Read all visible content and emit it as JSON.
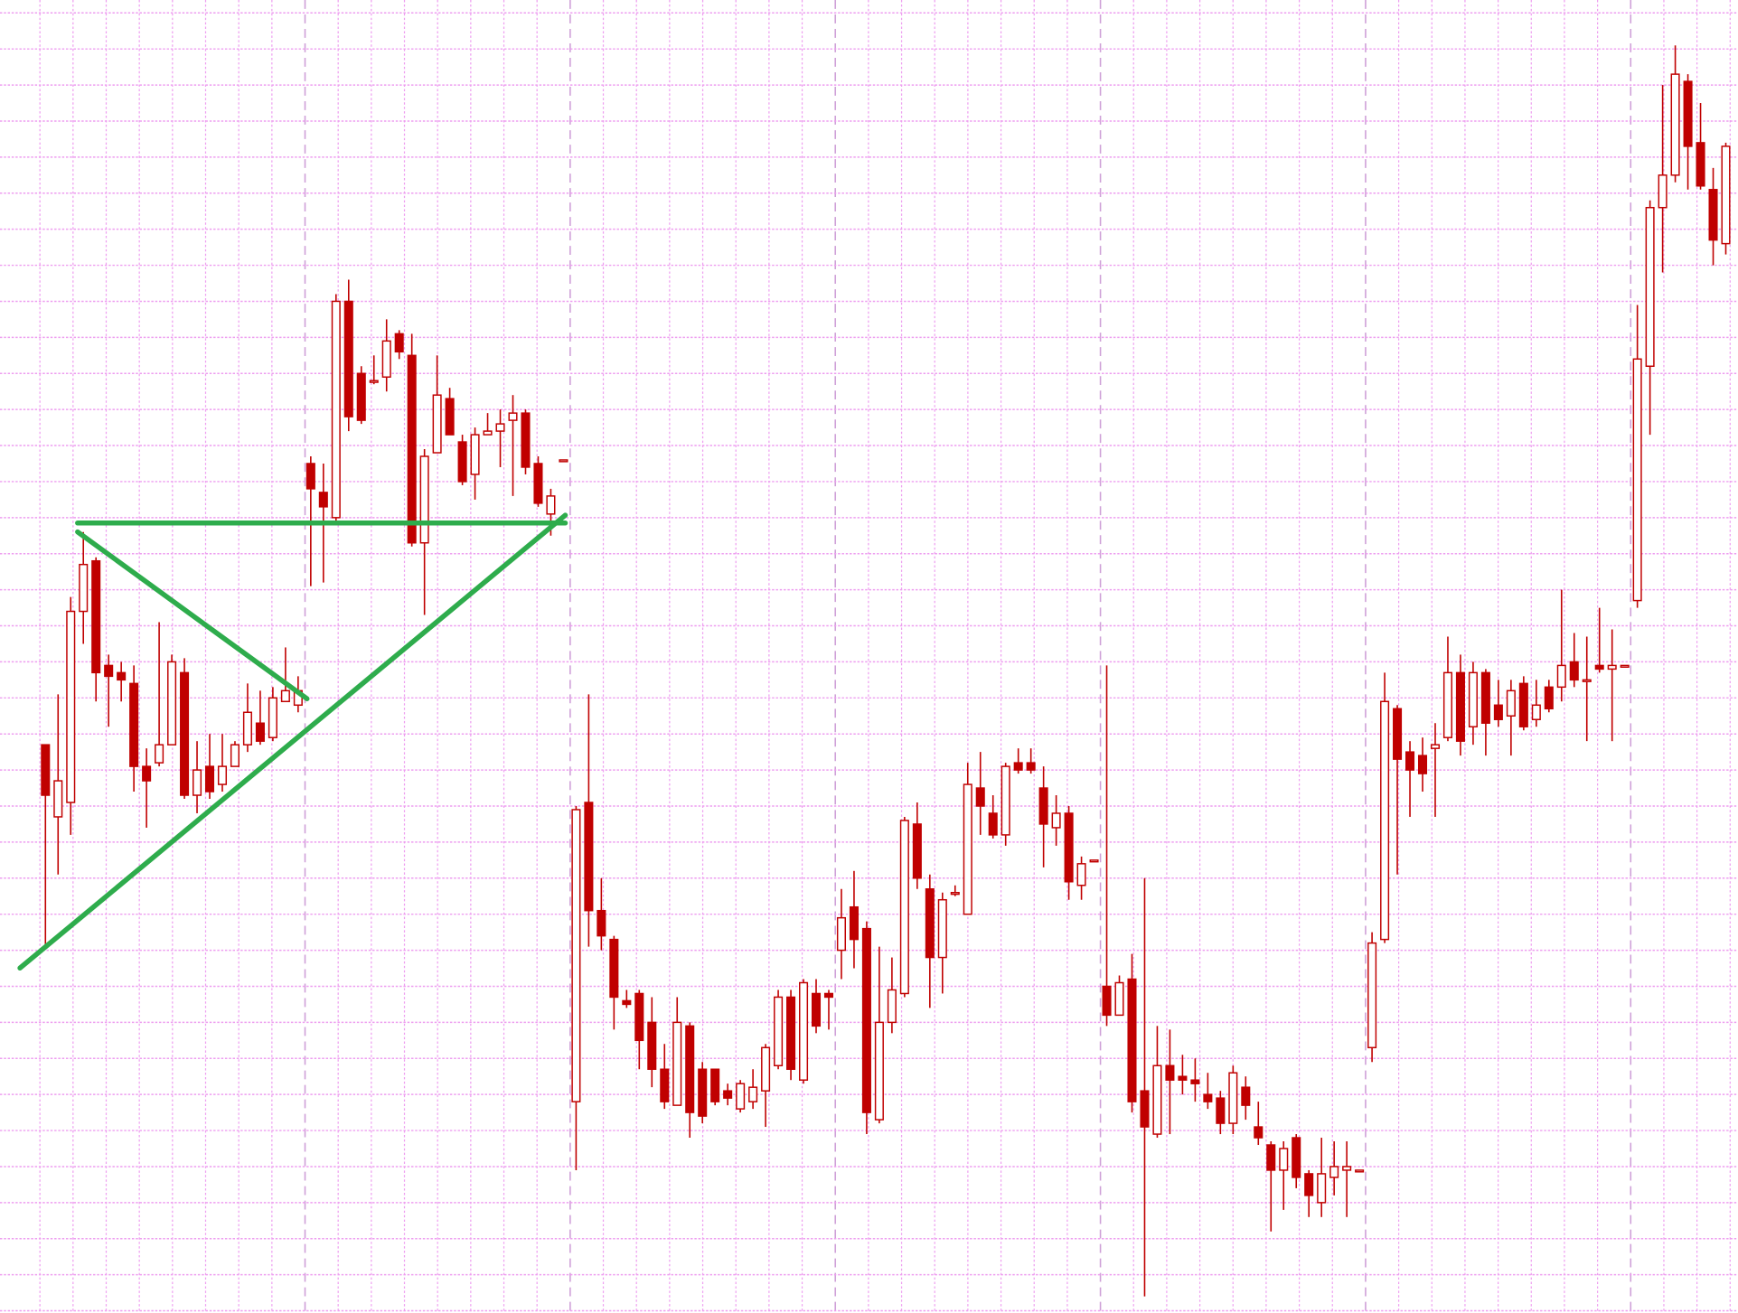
{
  "chart_data": {
    "type": "candlestick",
    "color": "#c00000",
    "grid_color": "#ee9ef0",
    "annotation_color": "#2eac4c",
    "open": [
      15.7,
      13.7,
      14.1,
      19.4,
      20.8,
      17.9,
      17.7,
      17.4,
      15.1,
      15.2,
      15.7,
      17.7,
      14.3,
      15.1,
      14.6,
      15.1,
      15.7,
      16.3,
      15.9,
      16.9,
      16.8,
      23.5,
      22.7,
      22.0,
      28.0,
      26.0,
      25.8,
      25.9,
      27.1,
      26.5,
      21.3,
      23.8,
      25.3,
      24.1,
      23.2,
      24.3,
      24.4,
      24.7,
      24.9,
      23.5,
      22.1,
      23.6,
      5.8,
      14.1,
      11.1,
      10.3,
      8.6,
      8.8,
      8.0,
      6.7,
      5.7,
      7.9,
      6.7,
      6.7,
      6.1,
      5.6,
      5.8,
      6.1,
      6.8,
      8.7,
      6.4,
      8.8,
      8.8,
      10.0,
      11.2,
      10.6,
      5.3,
      8.0,
      8.8,
      13.5,
      11.7,
      9.8,
      11.6,
      11.0,
      14.5,
      13.8,
      13.2,
      15.2,
      15.2,
      14.5,
      13.4,
      13.8,
      11.8,
      12.5,
      9.0,
      8.2,
      9.2,
      6.1,
      4.9,
      6.8,
      6.5,
      6.4,
      6.0,
      5.9,
      5.2,
      6.2,
      5.1,
      4.6,
      3.9,
      4.8,
      3.8,
      3.0,
      3.7,
      3.9,
      3.9,
      7.3,
      10.3,
      16.7,
      15.5,
      15.4,
      15.6,
      15.9,
      17.7,
      16.2,
      17.7,
      16.8,
      16.5,
      17.4,
      16.4,
      17.3,
      17.3,
      18.0,
      17.5,
      17.9,
      17.8,
      17.9,
      19.7,
      26.2,
      30.6,
      31.5,
      34.1,
      32.4,
      31.1,
      29.6
    ],
    "high": [
      15.7,
      17.1,
      19.8,
      21.6,
      20.9,
      18.2,
      18.0,
      17.9,
      15.6,
      19.1,
      18.2,
      18.1,
      15.8,
      16.0,
      16.0,
      15.8,
      17.4,
      17.2,
      17.3,
      18.4,
      17.6,
      23.7,
      23.5,
      28.2,
      28.6,
      26.2,
      26.5,
      27.5,
      27.2,
      27.1,
      23.9,
      26.5,
      25.6,
      24.3,
      24.5,
      24.9,
      25.0,
      25.4,
      25.0,
      23.7,
      22.8,
      23.6,
      14.0,
      17.1,
      12.0,
      10.4,
      8.9,
      8.9,
      8.7,
      7.4,
      8.7,
      8.0,
      6.9,
      6.7,
      6.3,
      6.4,
      6.7,
      7.4,
      8.9,
      8.9,
      9.2,
      9.2,
      8.9,
      11.7,
      12.2,
      10.8,
      10.1,
      9.8,
      13.7,
      14.1,
      12.1,
      11.6,
      11.8,
      15.2,
      15.5,
      14.3,
      15.2,
      15.6,
      15.6,
      15.1,
      14.3,
      14.0,
      12.6,
      12.5,
      17.9,
      9.3,
      9.9,
      12.0,
      7.9,
      7.8,
      7.1,
      7.0,
      6.6,
      6.1,
      6.8,
      6.5,
      5.8,
      4.7,
      4.7,
      4.9,
      3.9,
      4.8,
      4.7,
      4.7,
      3.9,
      10.5,
      17.7,
      16.8,
      15.8,
      15.9,
      16.3,
      18.7,
      18.2,
      18.0,
      17.8,
      17.5,
      17.5,
      17.6,
      17.5,
      17.5,
      20.0,
      18.8,
      18.7,
      19.5,
      18.9,
      17.9,
      27.9,
      30.8,
      34.0,
      35.1,
      34.3,
      33.5,
      31.7,
      32.4
    ],
    "low": [
      10.1,
      12.1,
      13.2,
      18.5,
      16.9,
      16.2,
      16.9,
      14.4,
      13.4,
      15.1,
      15.7,
      14.2,
      13.8,
      14.2,
      14.4,
      15.1,
      15.5,
      15.7,
      15.8,
      16.9,
      16.6,
      20.1,
      20.2,
      21.9,
      24.4,
      24.6,
      25.7,
      25.5,
      26.4,
      21.2,
      19.3,
      23.8,
      24.3,
      22.9,
      22.5,
      24.3,
      23.4,
      22.6,
      23.2,
      22.3,
      21.5,
      23.6,
      3.9,
      10.1,
      10.0,
      7.8,
      8.4,
      6.7,
      6.2,
      5.6,
      5.7,
      4.8,
      5.2,
      5.7,
      5.7,
      5.5,
      5.6,
      5.1,
      6.7,
      6.4,
      6.3,
      7.7,
      7.8,
      9.2,
      9.5,
      4.9,
      5.2,
      7.7,
      8.7,
      11.7,
      8.4,
      8.8,
      11.5,
      11.0,
      13.2,
      13.1,
      12.9,
      14.9,
      14.9,
      12.3,
      12.9,
      11.4,
      11.4,
      12.5,
      7.9,
      8.2,
      5.5,
      0.4,
      4.8,
      4.9,
      6.0,
      5.8,
      5.6,
      4.9,
      4.9,
      5.3,
      4.6,
      2.2,
      2.8,
      3.4,
      2.6,
      2.6,
      3.2,
      2.6,
      3.9,
      6.9,
      10.2,
      12.1,
      13.7,
      14.4,
      13.7,
      15.8,
      15.4,
      15.7,
      15.4,
      16.2,
      15.4,
      16.1,
      16.2,
      16.6,
      16.9,
      17.3,
      15.8,
      17.7,
      15.8,
      17.9,
      19.5,
      24.3,
      28.8,
      31.3,
      31.1,
      31.1,
      29.0,
      29.3
    ],
    "close": [
      14.3,
      14.7,
      19.4,
      20.7,
      17.7,
      17.6,
      17.5,
      15.1,
      14.7,
      15.7,
      18.0,
      14.3,
      15.0,
      14.4,
      15.1,
      15.7,
      16.6,
      15.8,
      17.0,
      17.2,
      17.2,
      22.8,
      22.3,
      28.0,
      24.8,
      24.7,
      25.8,
      26.9,
      26.6,
      21.3,
      23.7,
      25.4,
      24.3,
      23.0,
      24.3,
      24.4,
      24.6,
      24.9,
      23.4,
      22.4,
      22.6,
      23.6,
      13.9,
      11.1,
      10.4,
      8.7,
      8.5,
      7.5,
      6.7,
      5.8,
      8.0,
      5.5,
      5.4,
      5.8,
      5.9,
      6.3,
      6.2,
      7.3,
      8.7,
      6.7,
      9.1,
      7.9,
      8.7,
      10.9,
      10.3,
      5.5,
      8.0,
      8.9,
      13.6,
      12.0,
      9.8,
      11.4,
      11.6,
      14.6,
      14.0,
      13.2,
      15.1,
      15.0,
      15.0,
      13.5,
      13.8,
      11.9,
      12.4,
      12.5,
      8.2,
      9.1,
      5.8,
      5.1,
      6.8,
      6.4,
      6.4,
      6.3,
      5.8,
      5.2,
      6.6,
      5.7,
      4.8,
      3.9,
      4.5,
      3.7,
      3.2,
      3.8,
      4.0,
      4.0,
      3.9,
      10.2,
      16.9,
      15.3,
      15.0,
      14.9,
      15.7,
      17.7,
      15.8,
      17.7,
      16.3,
      16.4,
      17.2,
      16.2,
      16.8,
      16.7,
      17.9,
      17.5,
      17.5,
      17.8,
      17.9,
      17.9,
      26.4,
      30.6,
      31.5,
      34.3,
      32.3,
      31.2,
      29.7,
      32.3
    ],
    "ylim": [
      0,
      36.4
    ],
    "yticks": [
      0,
      1,
      2,
      3,
      4,
      5,
      6,
      7,
      8,
      9,
      10,
      11,
      12,
      13,
      14,
      15,
      16,
      17,
      18,
      19,
      20,
      21,
      22,
      23,
      24,
      25,
      26,
      27,
      28,
      29,
      30,
      31,
      32,
      33,
      34,
      35,
      36
    ],
    "grid": true
  }
}
